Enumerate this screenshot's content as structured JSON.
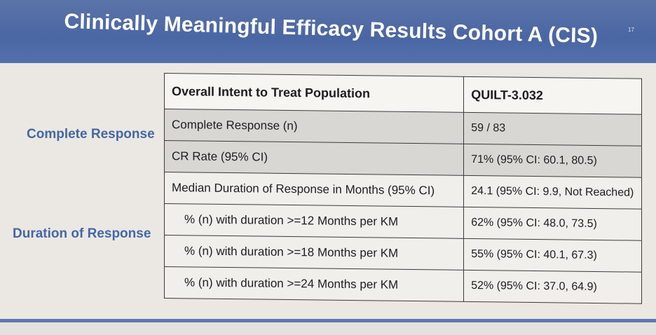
{
  "slide": {
    "title": "Clinically Meaningful Efficacy Results Cohort A (CIS)",
    "number": "17"
  },
  "row_groups": {
    "complete_response": "Complete Response",
    "duration_of_response": "Duration of Response"
  },
  "table": {
    "header": [
      "Overall Intent to Treat Population",
      "QUILT-3.032"
    ],
    "rows": [
      [
        "Complete Response (n)",
        "59 / 83"
      ],
      [
        "CR Rate (95% CI)",
        "71% (95% CI: 60.1, 80.5)"
      ],
      [
        "Median Duration of Response in Months (95% CI)",
        "24.1 (95% CI: 9.9, Not Reached)"
      ],
      [
        "% (n) with duration >=12 Months per KM",
        "62% (95% CI: 48.0, 73.5)"
      ],
      [
        "% (n) with duration >=18 Months per KM",
        "55% (95% CI: 40.1, 67.3)"
      ],
      [
        "% (n) with duration >=24 Months per KM",
        "52% (95% CI: 37.0, 64.9)"
      ]
    ]
  },
  "colors": {
    "header_band": "#4a66a3",
    "label_text": "#4467a7",
    "shaded_row": "#d9d7d3"
  }
}
